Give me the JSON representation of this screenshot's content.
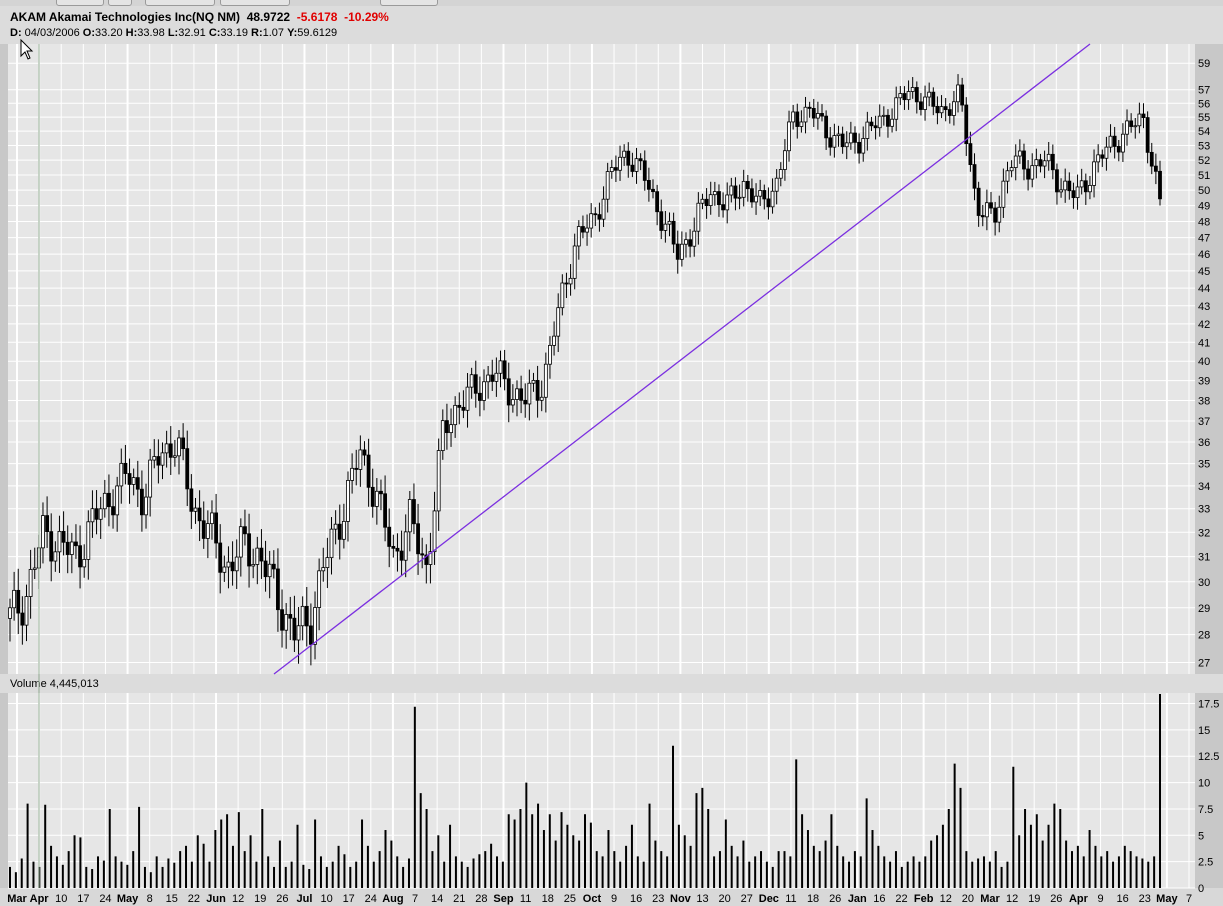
{
  "header": {
    "symbol": "AKAM",
    "name": "Akamai Technologies Inc(NQ NM)",
    "last": "48.9722",
    "change": "-5.6178",
    "change_pct": "-10.29%",
    "date_label": "D:",
    "date": "04/03/2006",
    "open_label": "O:",
    "open": "33.20",
    "high_label": "H:",
    "high": "33.98",
    "low_label": "L:",
    "low": "32.91",
    "close_label": "C:",
    "close": "33.19",
    "r_label": "R:",
    "r": "1.07",
    "y_label": "Y:",
    "y": "59.6129"
  },
  "volume_header": {
    "label": "Volume",
    "value": "4,445,013"
  },
  "colors": {
    "panel_bg": "#e6e6e6",
    "grid": "#ffffff",
    "candle": "#000000",
    "trendline": "#7b2fe0",
    "change_negative": "#e00000"
  },
  "chart_data": [
    {
      "type": "candlestick",
      "title": "AKAM Akamai Technologies Inc(NQ NM)",
      "y_scale": "log",
      "ylim": [
        26.6,
        60.5
      ],
      "y_ticks": [
        27,
        28,
        29,
        30,
        31,
        32,
        33,
        34,
        35,
        36,
        37,
        38,
        39,
        40,
        41,
        42,
        43,
        44,
        45,
        46,
        47,
        48,
        49,
        50,
        51,
        52,
        53,
        54,
        55,
        56,
        57,
        59
      ],
      "x_ticks": [
        {
          "label": "Mar",
          "bold": true
        },
        {
          "label": "Apr",
          "bold": true
        },
        {
          "label": "10"
        },
        {
          "label": "17"
        },
        {
          "label": "24"
        },
        {
          "label": "May",
          "bold": true
        },
        {
          "label": "8"
        },
        {
          "label": "15"
        },
        {
          "label": "22"
        },
        {
          "label": "Jun",
          "bold": true
        },
        {
          "label": "12"
        },
        {
          "label": "19"
        },
        {
          "label": "26"
        },
        {
          "label": "Jul",
          "bold": true
        },
        {
          "label": "10"
        },
        {
          "label": "17"
        },
        {
          "label": "24"
        },
        {
          "label": "Aug",
          "bold": true
        },
        {
          "label": "7"
        },
        {
          "label": "14"
        },
        {
          "label": "21"
        },
        {
          "label": "28"
        },
        {
          "label": "Sep",
          "bold": true
        },
        {
          "label": "11"
        },
        {
          "label": "18"
        },
        {
          "label": "25"
        },
        {
          "label": "Oct",
          "bold": true
        },
        {
          "label": "9"
        },
        {
          "label": "16"
        },
        {
          "label": "23"
        },
        {
          "label": "Nov",
          "bold": true
        },
        {
          "label": "13"
        },
        {
          "label": "20"
        },
        {
          "label": "27"
        },
        {
          "label": "Dec",
          "bold": true
        },
        {
          "label": "11"
        },
        {
          "label": "18"
        },
        {
          "label": "26"
        },
        {
          "label": "Jan",
          "bold": true
        },
        {
          "label": "16"
        },
        {
          "label": "22"
        },
        {
          "label": "Feb",
          "bold": true
        },
        {
          "label": "12"
        },
        {
          "label": "20"
        },
        {
          "label": "Mar",
          "bold": true
        },
        {
          "label": "12"
        },
        {
          "label": "19"
        },
        {
          "label": "26"
        },
        {
          "label": "Apr",
          "bold": true
        },
        {
          "label": "9"
        },
        {
          "label": "16"
        },
        {
          "label": "23"
        },
        {
          "label": "May",
          "bold": true
        },
        {
          "label": "7"
        }
      ],
      "closes_weekly": [
        28.6,
        29.5,
        32.0,
        31.5,
        31.0,
        32.5,
        33.5,
        34.5,
        33.5,
        35.5,
        36.0,
        33.0,
        32.0,
        30.5,
        31.5,
        31.0,
        29.5,
        28.0,
        28.5,
        31.0,
        33.0,
        35.5,
        33.5,
        31.0,
        32.5,
        30.5,
        36.5,
        38.0,
        38.5,
        39.5,
        38.5,
        38.0,
        39.0,
        43.0,
        47.0,
        48.0,
        51.0,
        52.5,
        51.0,
        48.5,
        46.0,
        47.5,
        50.0,
        49.0,
        50.5,
        49.0,
        50.5,
        55.0,
        55.5,
        54.0,
        53.0,
        53.5,
        54.5,
        55.5,
        57.0,
        56.0,
        55.5,
        56.5,
        49.0,
        48.0,
        52.0,
        51.5,
        52.0,
        50.5,
        49.5,
        51.5,
        53.0,
        54.0,
        55.0,
        49.0
      ],
      "trendline": {
        "from": [
          "Jun",
          "27.0"
        ],
        "to": [
          "Feb",
          "59.8"
        ]
      }
    },
    {
      "type": "bar",
      "title": "Volume",
      "unit": "millions",
      "ylim": [
        0,
        18.5
      ],
      "y_ticks": [
        0,
        2.5,
        5,
        7.5,
        10,
        12.5,
        15,
        17.5
      ],
      "values": [
        2.0,
        1.5,
        2.8,
        8.0,
        2.5,
        2.0,
        7.9,
        4.0,
        3.0,
        2.2,
        3.5,
        5.0,
        4.8,
        2.0,
        1.8,
        3.0,
        2.6,
        7.5,
        3.0,
        2.5,
        2.2,
        3.5,
        7.7,
        2.0,
        1.5,
        3.0,
        2.0,
        2.8,
        2.4,
        3.5,
        4.0,
        2.5,
        5.0,
        4.2,
        2.5,
        5.5,
        6.5,
        7.0,
        4.0,
        7.2,
        3.5,
        5.0,
        2.5,
        7.5,
        3.0,
        2.0,
        4.5,
        2.0,
        2.5,
        6.0,
        2.2,
        1.8,
        6.5,
        3.0,
        2.0,
        2.5,
        4.0,
        3.2,
        2.0,
        2.5,
        6.5,
        4.0,
        2.5,
        3.5,
        5.5,
        4.5,
        3.0,
        2.0,
        2.8,
        17.2,
        9.0,
        7.5,
        3.5,
        5.0,
        2.5,
        6.0,
        3.0,
        2.5,
        2.0,
        2.8,
        3.2,
        3.5,
        4.2,
        3.0,
        2.5,
        7.0,
        6.5,
        7.5,
        10.0,
        7.0,
        8.0,
        5.5,
        7.0,
        4.5,
        7.2,
        6.0,
        5.0,
        4.5,
        7.0,
        6.2,
        3.5,
        3.0,
        5.5,
        3.5,
        2.5,
        4.0,
        6.0,
        3.0,
        2.5,
        8.0,
        4.5,
        3.5,
        3.0,
        13.5,
        6.0,
        5.0,
        4.0,
        9.0,
        9.5,
        7.5,
        3.0,
        3.5,
        6.5,
        4.0,
        3.0,
        4.5,
        2.5,
        3.0,
        3.5,
        2.5,
        2.0,
        3.5,
        3.5,
        3.0,
        12.2,
        7.0,
        5.5,
        4.0,
        3.5,
        4.5,
        7.0,
        4.0,
        3.0,
        2.5,
        3.5,
        3.0,
        8.5,
        5.5,
        4.0,
        3.0,
        2.5,
        3.5,
        2.0,
        2.5,
        3.0,
        2.5,
        3.0,
        4.5,
        5.0,
        6.0,
        7.5,
        11.8,
        9.5,
        3.5,
        2.5,
        2.8,
        3.0,
        2.5,
        3.5,
        2.0,
        2.5,
        11.5,
        5.0,
        7.5,
        6.0,
        7.0,
        4.5,
        6.0,
        8.0,
        7.5,
        4.5,
        3.5,
        4.0,
        3.0,
        5.5,
        4.0,
        3.0,
        3.5,
        2.5,
        3.0,
        4.0,
        3.5,
        3.0,
        2.8,
        2.5,
        3.0,
        18.4
      ]
    }
  ]
}
